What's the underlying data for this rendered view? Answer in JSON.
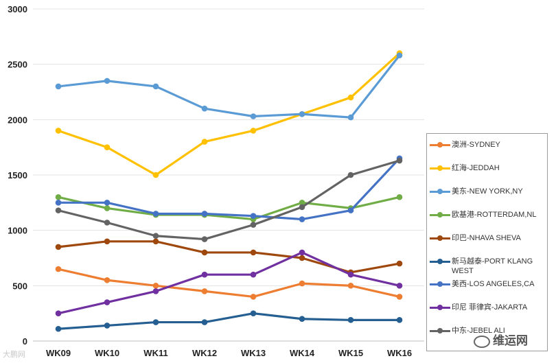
{
  "chart_data": {
    "type": "line",
    "title": "",
    "xlabel": "",
    "ylabel": "",
    "ylim": [
      0,
      3000
    ],
    "yticks": [
      0,
      500,
      1000,
      1500,
      2000,
      2500,
      3000
    ],
    "grid": true,
    "legend_position": "right",
    "categories": [
      "WK09",
      "WK10",
      "WK11",
      "WK12",
      "WK13",
      "WK14",
      "WK15",
      "WK16"
    ],
    "series": [
      {
        "name": "澳洲-SYDNEY",
        "color": "#ed7d31",
        "values": [
          650,
          550,
          500,
          450,
          400,
          520,
          500,
          400
        ]
      },
      {
        "name": "红海-JEDDAH",
        "color": "#ffc000",
        "values": [
          1900,
          1750,
          1500,
          1800,
          1900,
          2050,
          2200,
          2600
        ]
      },
      {
        "name": "美东-NEW YORK,NY",
        "color": "#5b9bd5",
        "values": [
          2300,
          2350,
          2300,
          2100,
          2030,
          2050,
          2020,
          2580
        ]
      },
      {
        "name": "欧基港-ROTTERDAM,NL",
        "color": "#70ad47",
        "values": [
          1300,
          1200,
          1140,
          1140,
          1100,
          1250,
          1200,
          1300
        ]
      },
      {
        "name": "印巴-NHAVA SHEVA",
        "color": "#9e480e",
        "values": [
          850,
          900,
          900,
          800,
          800,
          750,
          620,
          700
        ]
      },
      {
        "name": "新马越泰-PORT KLANG WEST",
        "color": "#255e91",
        "values": [
          110,
          140,
          170,
          170,
          250,
          200,
          190,
          190
        ]
      },
      {
        "name": "美西-LOS ANGELES,CA",
        "color": "#4472c4",
        "values": [
          1250,
          1250,
          1150,
          1150,
          1130,
          1100,
          1180,
          1650
        ]
      },
      {
        "name": "印尼 菲律宾-JAKARTA",
        "color": "#7030a0",
        "values": [
          250,
          350,
          450,
          600,
          600,
          800,
          600,
          500
        ]
      },
      {
        "name": "中东-JEBEL ALI",
        "color": "#636363",
        "values": [
          1180,
          1070,
          950,
          920,
          1050,
          1210,
          1500,
          1630
        ]
      }
    ]
  },
  "watermarks": {
    "left": "大鹏网",
    "right": "维运网"
  }
}
